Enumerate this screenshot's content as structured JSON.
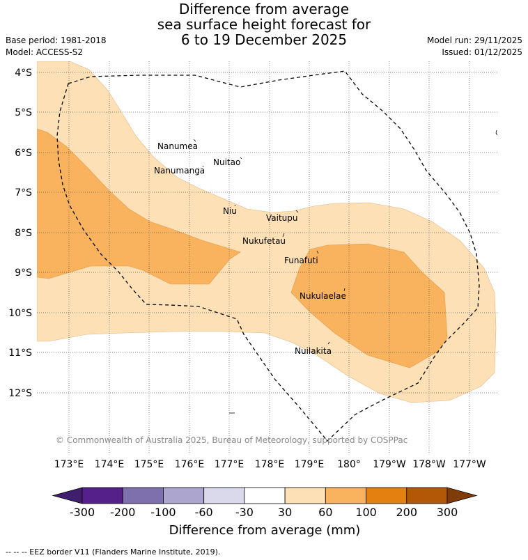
{
  "title": {
    "line1": "Difference from average",
    "line2": "sea surface height forecast for",
    "line3": "6 to 19 December 2025"
  },
  "meta": {
    "base_period": "Base period: 1981-2018",
    "model": "Model: ACCESS-S2",
    "model_run": "Model run: 29/11/2025",
    "issued": "Issued: 01/12/2025"
  },
  "map": {
    "lat_labels": [
      "4°S",
      "5°S",
      "6°S",
      "7°S",
      "8°S",
      "9°S",
      "10°S",
      "11°S",
      "12°S"
    ],
    "lon_labels": [
      "173°E",
      "174°E",
      "175°E",
      "176°E",
      "177°E",
      "178°E",
      "179°E",
      "180°",
      "179°W",
      "178°W",
      "177°W"
    ],
    "places": [
      {
        "name": "Nanumea"
      },
      {
        "name": "Nuitao"
      },
      {
        "name": "Nanumanga"
      },
      {
        "name": "Niu"
      },
      {
        "name": "Vaitupu"
      },
      {
        "name": "Nukufetau"
      },
      {
        "name": "Funafuti"
      },
      {
        "name": "Nukulaelae"
      },
      {
        "name": "Nuilakita"
      }
    ],
    "copyright": "© Commonwealth of Australia 2025, Bureau of Meteorology, supported by COSPPac"
  },
  "colorbar": {
    "ticks": [
      "-300",
      "-200",
      "-100",
      "-60",
      "-30",
      "30",
      "60",
      "100",
      "200",
      "300"
    ],
    "colors": [
      "#3f1f6d",
      "#55208a",
      "#7e70ad",
      "#aca6cf",
      "#d9d9eb",
      "#ffffff",
      "#fde0b5",
      "#f9b35e",
      "#e2810f",
      "#b35806",
      "#7f3b08"
    ],
    "label": "Difference from average (mm)"
  },
  "footer": "-- -- -- EEZ border V11 (Flanders Marine Institute, 2019).",
  "colors": {
    "light_orange": "#fde0b5",
    "mid_orange": "#f9b35e",
    "eez_line": "#000000",
    "grid": "#555555"
  }
}
